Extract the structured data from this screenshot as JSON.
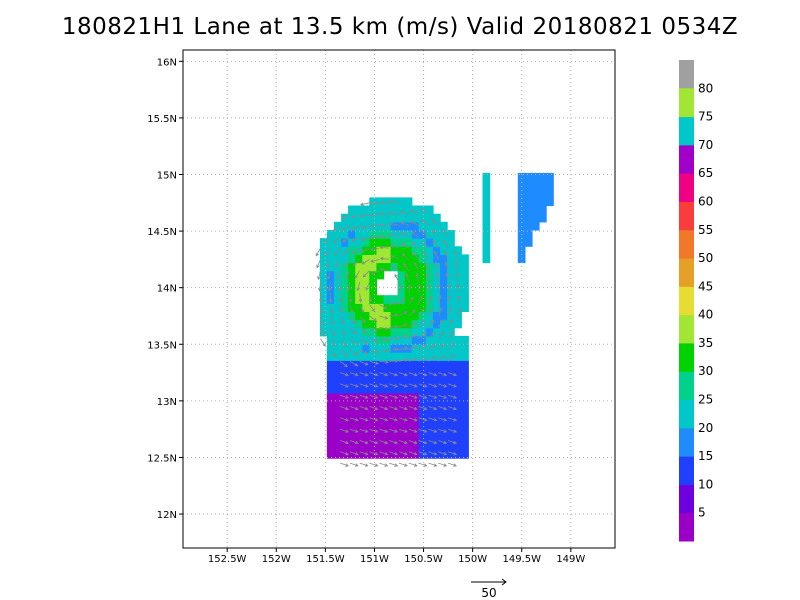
{
  "chart_data": {
    "type": "heatmap",
    "title": "180821H1 Lane at 13.5 km (m/s) Valid 20180821  0534Z",
    "x_ticks": [
      "152.5W",
      "152W",
      "151.5W",
      "151W",
      "150.5W",
      "150W",
      "149.5W",
      "149W"
    ],
    "x_tick_values": [
      -152.5,
      -152,
      -151.5,
      -151,
      -150.5,
      -150,
      -149.5,
      -149
    ],
    "y_ticks": [
      "16N",
      "15.5N",
      "15N",
      "14.5N",
      "14N",
      "13.5N",
      "13N",
      "12.5N",
      "12N"
    ],
    "y_tick_values": [
      16,
      15.5,
      15,
      14.5,
      14,
      13.5,
      13,
      12.5,
      12
    ],
    "xlim": [
      -152.95,
      -148.55
    ],
    "ylim": [
      11.7,
      16.1
    ],
    "grid": true,
    "colorbar": {
      "placement": "right",
      "levels": [
        {
          "label": "5",
          "color": "#9a00c8"
        },
        {
          "label": "10",
          "color": "#6e00e0"
        },
        {
          "label": "15",
          "color": "#2040ff"
        },
        {
          "label": "20",
          "color": "#1e8cff"
        },
        {
          "label": "25",
          "color": "#00c8c8"
        },
        {
          "label": "30",
          "color": "#00d28c"
        },
        {
          "label": "35",
          "color": "#00d200"
        },
        {
          "label": "40",
          "color": "#a0e632"
        },
        {
          "label": "45",
          "color": "#e6dc32"
        },
        {
          "label": "50",
          "color": "#e6a028"
        },
        {
          "label": "55",
          "color": "#f07828"
        },
        {
          "label": "60",
          "color": "#fa3c3c"
        },
        {
          "label": "65",
          "color": "#f00082"
        },
        {
          "label": "70",
          "color": "#a000c8"
        },
        {
          "label": "75",
          "color": "#00c8c8"
        },
        {
          "label": "80",
          "color": "#a0e632"
        }
      ],
      "top_color": "#a0a0a0"
    },
    "vector_scale_label": "50"
  }
}
